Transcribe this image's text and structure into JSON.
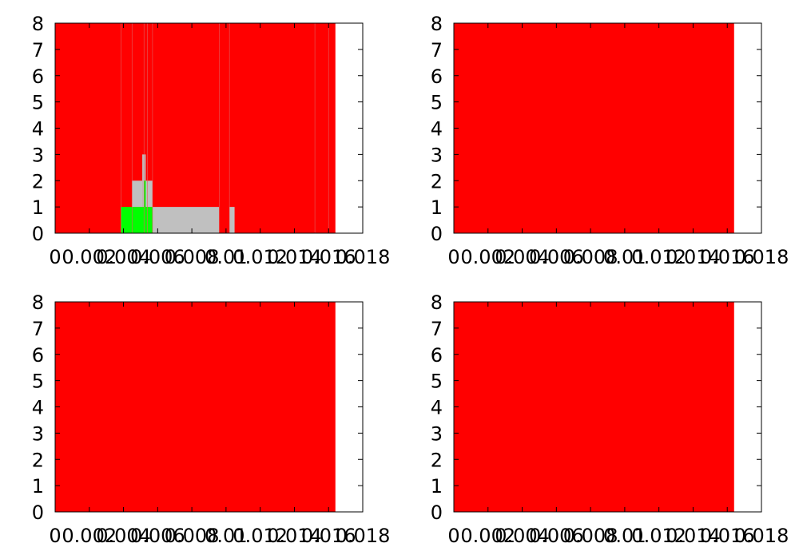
{
  "colors": {
    "background": "#ffffff",
    "state_red": "#ff0000",
    "state_green": "#00ff00",
    "state_gray": "#c0c0c0"
  },
  "chart_data": [
    {
      "type": "bar",
      "title": "",
      "xlabel": "",
      "ylabel": "",
      "xlim": [
        0,
        0.018
      ],
      "ylim": [
        0,
        8
      ],
      "x_tick_labels": [
        "0",
        "0.002",
        "0.004",
        "0.006",
        "0.008",
        "0.01",
        "0.012",
        "0.014",
        "0.016",
        "0.018"
      ],
      "y_tick_labels": [
        "0",
        "1",
        "2",
        "3",
        "4",
        "5",
        "6",
        "7",
        "8"
      ],
      "grid": false,
      "legend": "none",
      "background_state": {
        "color": "#ff0000",
        "x_range": [
          0,
          0.0164
        ],
        "y_range": [
          0,
          8
        ]
      },
      "segments": [
        {
          "x0": 0.00385,
          "x1": 0.0045,
          "y0": 0,
          "y1": 1,
          "color": "#00ff00"
        },
        {
          "x0": 0.0045,
          "x1": 0.0057,
          "y0": 0,
          "y1": 1,
          "color": "#00ff00"
        },
        {
          "x0": 0.0045,
          "x1": 0.0051,
          "y0": 1,
          "y1": 2,
          "color": "#c0c0c0"
        },
        {
          "x0": 0.0051,
          "x1": 0.0053,
          "y0": 1,
          "y1": 3,
          "color": "#c0c0c0"
        },
        {
          "x0": 0.0053,
          "x1": 0.0057,
          "y0": 1,
          "y1": 2,
          "color": "#c0c0c0"
        },
        {
          "x0": 0.0052,
          "x1": 0.0053,
          "y0": 1,
          "y1": 2,
          "color": "#00ff00"
        },
        {
          "x0": 0.0057,
          "x1": 0.0096,
          "y0": 0,
          "y1": 1,
          "color": "#c0c0c0"
        },
        {
          "x0": 0.0102,
          "x1": 0.0105,
          "y0": 0,
          "y1": 1,
          "color": "#c0c0c0"
        }
      ],
      "boundaries_x": [
        0.00385,
        0.0045,
        0.0052,
        0.0054,
        0.0057,
        0.0096,
        0.0102,
        0.0152,
        0.016
      ]
    },
    {
      "type": "bar",
      "title": "",
      "xlabel": "",
      "ylabel": "",
      "xlim": [
        0,
        0.018
      ],
      "ylim": [
        0,
        8
      ],
      "x_tick_labels": [
        "0",
        "0.002",
        "0.004",
        "0.006",
        "0.008",
        "0.01",
        "0.012",
        "0.014",
        "0.016",
        "0.018"
      ],
      "y_tick_labels": [
        "0",
        "1",
        "2",
        "3",
        "4",
        "5",
        "6",
        "7",
        "8"
      ],
      "grid": false,
      "legend": "none",
      "background_state": {
        "color": "#ff0000",
        "x_range": [
          0,
          0.0164
        ],
        "y_range": [
          0,
          8
        ]
      },
      "segments": [],
      "boundaries_x": []
    },
    {
      "type": "bar",
      "title": "",
      "xlabel": "",
      "ylabel": "",
      "xlim": [
        0,
        0.018
      ],
      "ylim": [
        0,
        8
      ],
      "x_tick_labels": [
        "0",
        "0.002",
        "0.004",
        "0.006",
        "0.008",
        "0.01",
        "0.012",
        "0.014",
        "0.016",
        "0.018"
      ],
      "y_tick_labels": [
        "0",
        "1",
        "2",
        "3",
        "4",
        "5",
        "6",
        "7",
        "8"
      ],
      "grid": false,
      "legend": "none",
      "background_state": {
        "color": "#ff0000",
        "x_range": [
          0,
          0.0164
        ],
        "y_range": [
          0,
          8
        ]
      },
      "segments": [],
      "boundaries_x": []
    },
    {
      "type": "bar",
      "title": "",
      "xlabel": "",
      "ylabel": "",
      "xlim": [
        0,
        0.018
      ],
      "ylim": [
        0,
        8
      ],
      "x_tick_labels": [
        "0",
        "0.002",
        "0.004",
        "0.006",
        "0.008",
        "0.01",
        "0.012",
        "0.014",
        "0.016",
        "0.018"
      ],
      "y_tick_labels": [
        "0",
        "1",
        "2",
        "3",
        "4",
        "5",
        "6",
        "7",
        "8"
      ],
      "grid": false,
      "legend": "none",
      "background_state": {
        "color": "#ff0000",
        "x_range": [
          0,
          0.0164
        ],
        "y_range": [
          0,
          8
        ]
      },
      "segments": [],
      "boundaries_x": []
    }
  ]
}
